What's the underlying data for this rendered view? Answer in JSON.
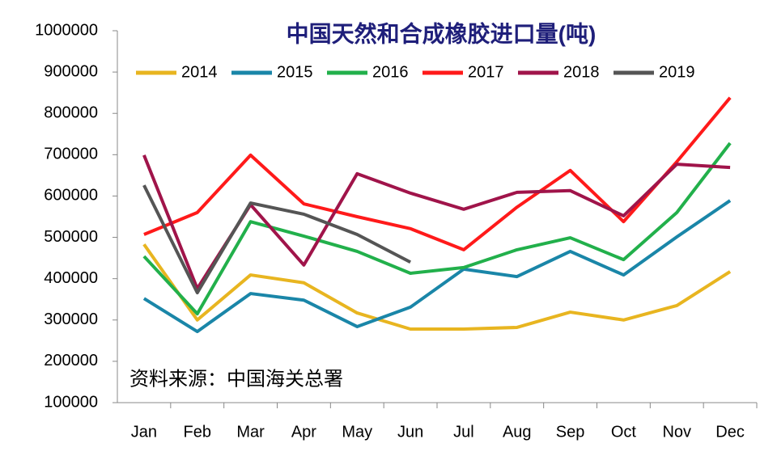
{
  "chart_data": {
    "type": "line",
    "title": "中国天然和合成橡胶进口量(吨)",
    "annotation": "资料来源：中国海关总署",
    "categories": [
      "Jan",
      "Feb",
      "Mar",
      "Apr",
      "May",
      "Jun",
      "Jul",
      "Aug",
      "Sep",
      "Oct",
      "Nov",
      "Dec"
    ],
    "series": [
      {
        "name": "2014",
        "color": "#e8b520",
        "values": [
          483000,
          300000,
          409000,
          390000,
          317000,
          278000,
          278000,
          282000,
          319000,
          300000,
          335000,
          417000
        ]
      },
      {
        "name": "2015",
        "color": "#1a86a8",
        "values": [
          352000,
          272000,
          364000,
          348000,
          284000,
          331000,
          423000,
          405000,
          466000,
          409000,
          501000,
          589000
        ]
      },
      {
        "name": "2016",
        "color": "#22b04b",
        "values": [
          454000,
          315000,
          538000,
          503000,
          466000,
          413000,
          427000,
          470000,
          499000,
          446000,
          560000,
          728000
        ]
      },
      {
        "name": "2017",
        "color": "#ff1a1a",
        "values": [
          507000,
          560000,
          699000,
          581000,
          550000,
          521000,
          470000,
          573000,
          662000,
          538000,
          683000,
          838000
        ]
      },
      {
        "name": "2018",
        "color": "#a0144a",
        "values": [
          699000,
          376000,
          579000,
          433000,
          654000,
          607000,
          568000,
          609000,
          613000,
          552000,
          677000,
          669000
        ]
      },
      {
        "name": "2019",
        "color": "#555555",
        "values": [
          626000,
          366000,
          583000,
          556000,
          507000,
          440000,
          null,
          null,
          null,
          null,
          null,
          null
        ]
      }
    ],
    "ylim": [
      100000,
      1000000
    ],
    "yticks": [
      100000,
      200000,
      300000,
      400000,
      500000,
      600000,
      700000,
      800000,
      900000,
      1000000
    ],
    "grid": false,
    "legend": "top"
  }
}
